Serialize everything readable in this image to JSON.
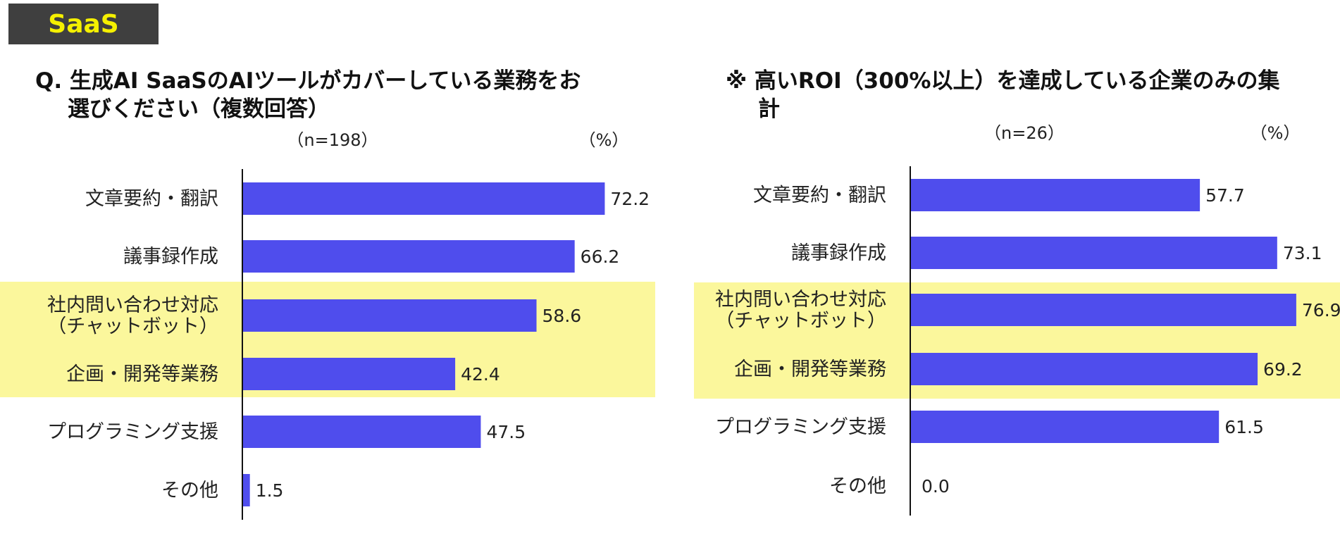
{
  "badge": {
    "label": "SaaS"
  },
  "colors": {
    "bar": "#4f4ded",
    "highlight": "#fbf79c",
    "badge_bg": "#3f3f3f",
    "badge_text": "#f5f000"
  },
  "chart_data": [
    {
      "type": "bar",
      "orientation": "horizontal",
      "title": "Q. 生成AI SaaSのAIツールがカバーしている業務をお選びください（複数回答）",
      "title_lines": [
        "Q. 生成AI SaaSのAIツールがカバーしている業務をお",
        "選びください（複数回答）"
      ],
      "sample": "（n=198）",
      "unit": "（%）",
      "categories": [
        [
          "文章要約・翻訳"
        ],
        [
          "議事録作成"
        ],
        [
          "社内問い合わせ対応",
          "（チャットボット）"
        ],
        [
          "企画・開発等業務"
        ],
        [
          "プログラミング支援"
        ],
        [
          "その他"
        ]
      ],
      "values": [
        72.2,
        66.2,
        58.6,
        42.4,
        47.5,
        1.5
      ],
      "value_labels": [
        "72.2",
        "66.2",
        "58.6",
        "42.4",
        "47.5",
        "1.5"
      ],
      "highlighted": [
        2,
        3
      ],
      "xlim": [
        0,
        80
      ]
    },
    {
      "type": "bar",
      "orientation": "horizontal",
      "title": "※ 高いROI（300%以上）を達成している企業のみの集計",
      "title_lines": [
        "※  高いROI（300%以上）を達成している企業のみの集",
        "計"
      ],
      "sample": "（n=26）",
      "unit": "（%）",
      "categories": [
        [
          "文章要約・翻訳"
        ],
        [
          "議事録作成"
        ],
        [
          "社内問い合わせ対応",
          "（チャットボット）"
        ],
        [
          "企画・開発等業務"
        ],
        [
          "プログラミング支援"
        ],
        [
          "その他"
        ]
      ],
      "values": [
        57.7,
        73.1,
        76.9,
        69.2,
        61.5,
        0.0
      ],
      "value_labels": [
        "57.7",
        "73.1",
        "76.9",
        "69.2",
        "61.5",
        "0.0"
      ],
      "highlighted": [
        2,
        3
      ],
      "xlim": [
        0,
        80
      ]
    }
  ]
}
